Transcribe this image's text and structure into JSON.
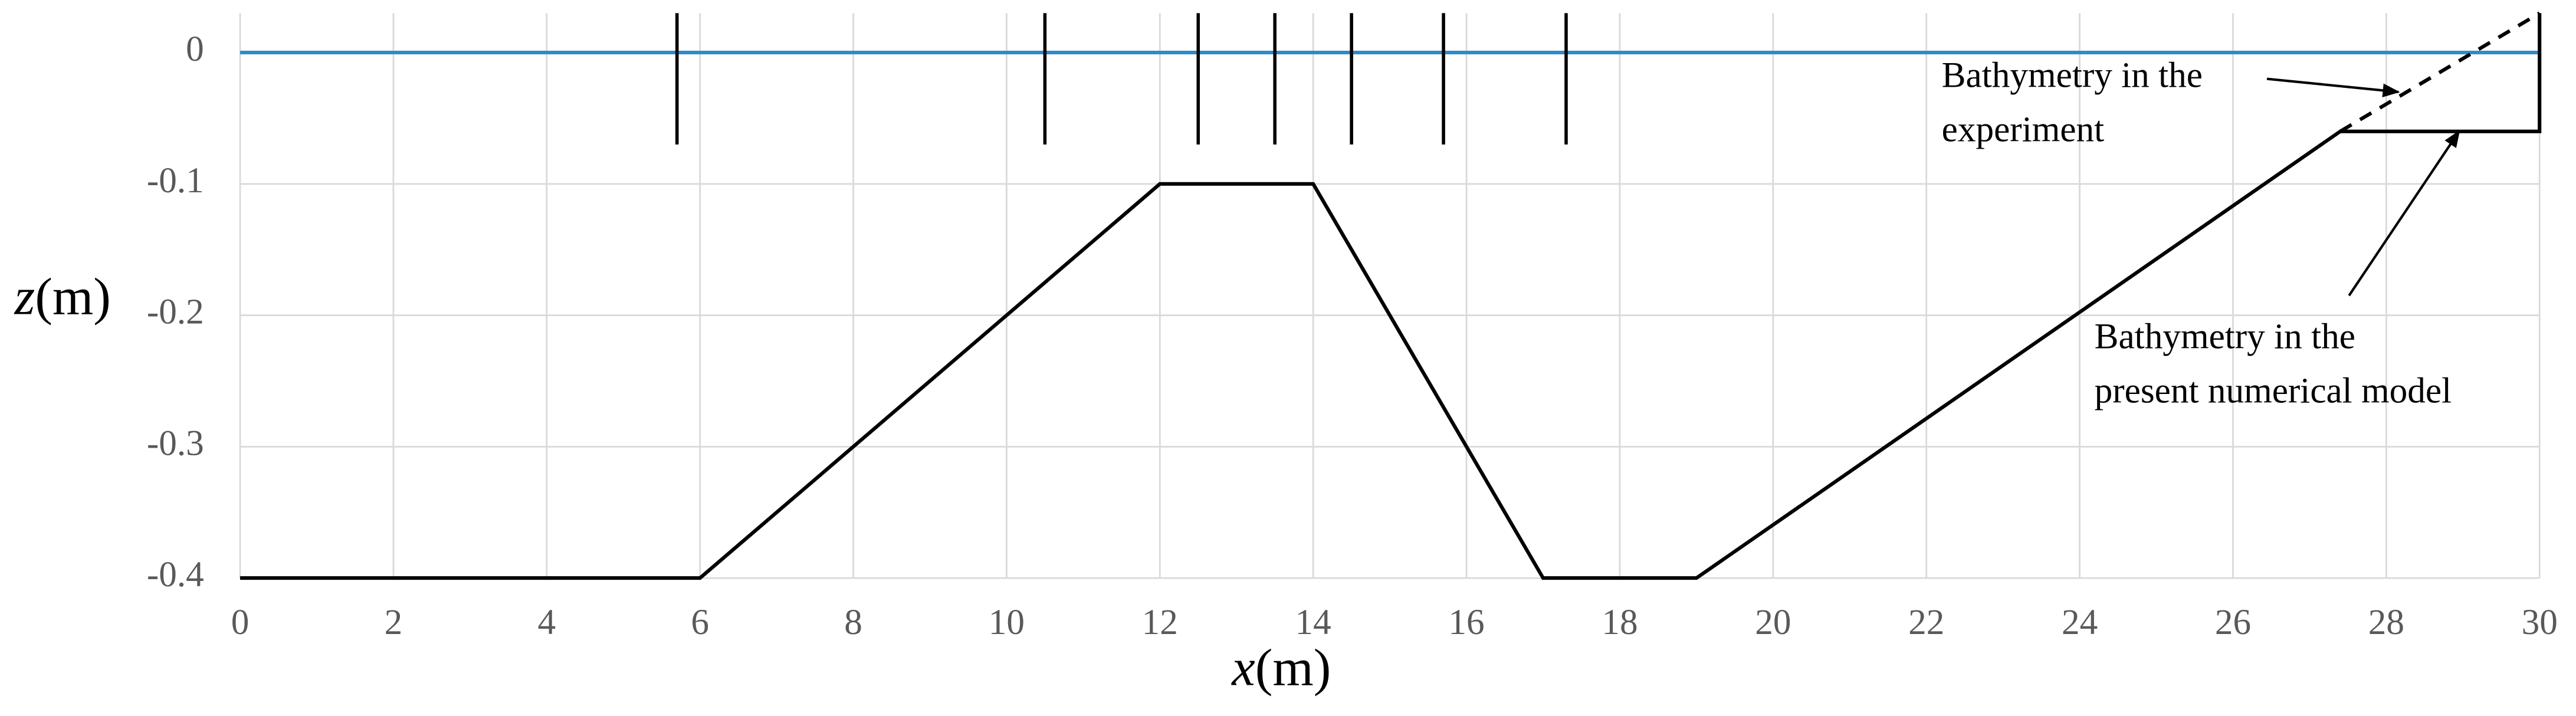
{
  "chart_data": {
    "type": "line",
    "xlabel_var": "x",
    "xlabel_unit": "(m)",
    "ylabel_var": "z",
    "ylabel_unit": "(m)",
    "xlim": [
      0,
      30
    ],
    "xticks": [
      0,
      2,
      4,
      6,
      8,
      10,
      12,
      14,
      16,
      18,
      20,
      22,
      24,
      26,
      28,
      30
    ],
    "ylim": [
      -0.4,
      0.03
    ],
    "yticks": [
      0,
      -0.1,
      -0.2,
      -0.3,
      -0.4
    ],
    "grid": true,
    "series": [
      {
        "color": "#2e8bc9",
        "x": [
          0,
          30
        ],
        "values": [
          0,
          0
        ]
      },
      {
        "color": "#000000",
        "x": [
          0,
          6,
          12,
          14,
          17,
          19,
          27.4,
          30,
          30
        ],
        "values": [
          -0.4,
          -0.4,
          -0.1,
          -0.1,
          -0.4,
          -0.4,
          -0.06,
          -0.06,
          0.03
        ]
      },
      {
        "color": "#000000",
        "dashed": true,
        "x": [
          27.4,
          30
        ],
        "values": [
          -0.06,
          0.03
        ]
      }
    ],
    "gauges": {
      "x": [
        5.7,
        10.5,
        12.5,
        13.5,
        14.5,
        15.7,
        17.3
      ],
      "range": [
        -0.07,
        0.03
      ]
    },
    "annotations": [
      {
        "lines": [
          "Bathymetry in the",
          "experiment"
        ]
      },
      {
        "lines": [
          "Bathymetry in the",
          "present numerical model"
        ]
      }
    ]
  }
}
